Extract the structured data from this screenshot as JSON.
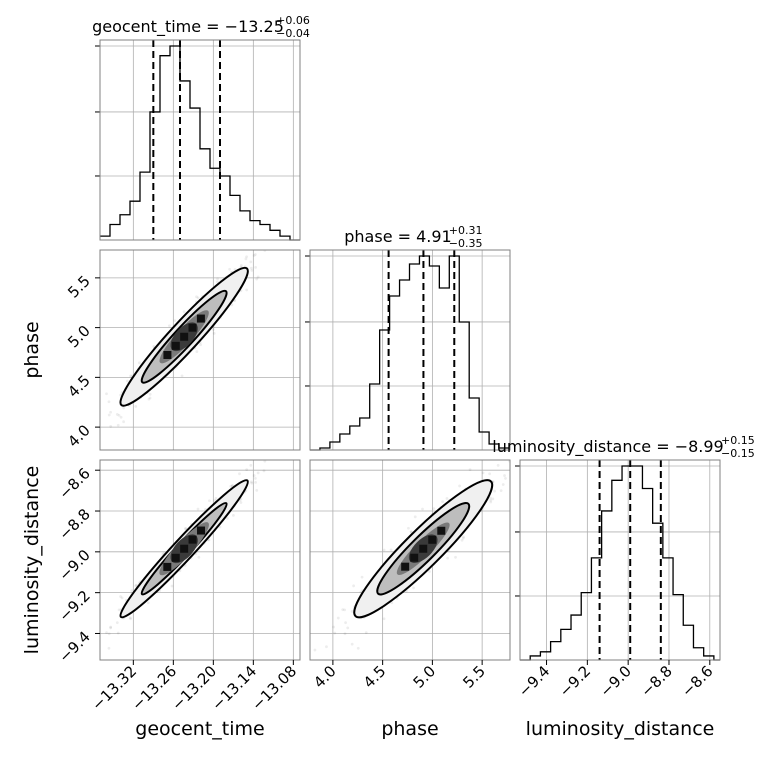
{
  "chart_data": {
    "type": "corner",
    "parameters": [
      "geocent_time",
      "phase",
      "luminosity_distance"
    ],
    "axis_labels": [
      "geocent_time",
      "phase",
      "luminosity_distance"
    ],
    "titles": [
      {
        "param": "geocent_time",
        "prefix": "geocent_time = ",
        "median": "−13.25",
        "plus": "+0.06",
        "minus": "−0.04"
      },
      {
        "param": "phase",
        "prefix": "phase = ",
        "median": "4.91",
        "plus": "+0.31",
        "minus": "−0.35"
      },
      {
        "param": "luminosity_distance",
        "prefix": "luminosity_distance = ",
        "median": "−8.99",
        "plus": "+0.15",
        "minus": "−0.15"
      }
    ],
    "ranges": {
      "geocent_time": [
        -13.37,
        -13.07
      ],
      "phase": [
        3.77,
        5.78
      ],
      "luminosity_distance": [
        -9.53,
        -8.55
      ]
    },
    "ticks": {
      "geocent_time": [
        -13.32,
        -13.26,
        -13.2,
        -13.14,
        -13.08
      ],
      "phase": [
        4.0,
        4.5,
        5.0,
        5.5
      ],
      "luminosity_distance": [
        -9.4,
        -9.2,
        -9.0,
        -8.8,
        -8.6
      ]
    },
    "tick_labels": {
      "geocent_time": [
        "−13.32",
        "−13.26",
        "−13.20",
        "−13.14",
        "−13.08"
      ],
      "phase": [
        "4.0",
        "4.5",
        "5.0",
        "5.5"
      ],
      "luminosity_distance": [
        "−9.4",
        "−9.2",
        "−9.0",
        "−8.8",
        "−8.6"
      ]
    },
    "quantiles": {
      "geocent_time": [
        -13.29,
        -13.25,
        -13.19
      ],
      "phase": [
        4.56,
        4.91,
        5.22
      ],
      "luminosity_distance": [
        -9.14,
        -8.99,
        -8.84
      ]
    },
    "histograms": {
      "geocent_time": {
        "edges": [
          -13.37,
          -13.355,
          -13.34,
          -13.325,
          -13.31,
          -13.295,
          -13.28,
          -13.265,
          -13.25,
          -13.235,
          -13.22,
          -13.205,
          -13.19,
          -13.175,
          -13.16,
          -13.145,
          -13.13,
          -13.115,
          -13.1,
          -13.085,
          -13.07
        ],
        "counts": [
          0.02,
          0.08,
          0.13,
          0.2,
          0.35,
          0.66,
          0.95,
          1.0,
          0.82,
          0.68,
          0.47,
          0.37,
          0.33,
          0.23,
          0.15,
          0.1,
          0.08,
          0.05,
          0.02,
          0.0
        ]
      },
      "phase": {
        "edges": [
          3.77,
          3.87,
          3.97,
          4.07,
          4.17,
          4.27,
          4.37,
          4.47,
          4.57,
          4.67,
          4.77,
          4.87,
          4.97,
          5.07,
          5.17,
          5.27,
          5.37,
          5.47,
          5.57,
          5.67,
          5.78
        ],
        "counts": [
          0.0,
          0.01,
          0.04,
          0.08,
          0.12,
          0.16,
          0.33,
          0.6,
          0.77,
          0.85,
          0.93,
          0.97,
          0.92,
          0.81,
          0.97,
          0.64,
          0.26,
          0.09,
          0.03,
          0.01
        ]
      },
      "luminosity_distance": {
        "edges": [
          -9.53,
          -9.48,
          -9.43,
          -9.38,
          -9.33,
          -9.28,
          -9.23,
          -9.18,
          -9.13,
          -9.08,
          -9.03,
          -8.98,
          -8.93,
          -8.88,
          -8.83,
          -8.78,
          -8.73,
          -8.68,
          -8.63,
          -8.58,
          -8.55
        ],
        "counts": [
          0.0,
          0.02,
          0.04,
          0.09,
          0.15,
          0.22,
          0.33,
          0.5,
          0.73,
          0.88,
          0.95,
          0.95,
          0.84,
          0.67,
          0.5,
          0.32,
          0.17,
          0.06,
          0.02,
          0.0
        ]
      }
    },
    "density_center": {
      "geocent_time": -13.24,
      "phase": 4.9,
      "luminosity_distance": -8.99
    },
    "grid": true
  }
}
